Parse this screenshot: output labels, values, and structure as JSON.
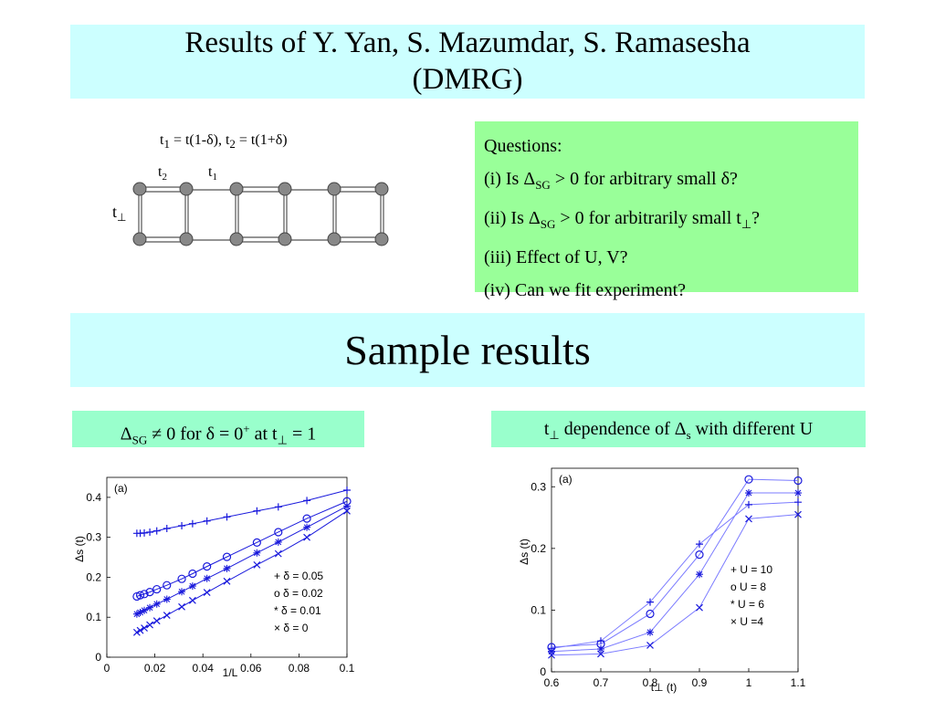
{
  "slide": {
    "title_line1": "Results of Y. Yan, S. Mazumdar, S. Ramasesha",
    "title_line2": "(DMRG)",
    "section_title": "Sample results"
  },
  "formula": {
    "t": "t",
    "one": "1",
    "two": "2",
    "eq1": " = t(1-δ), ",
    "eq2": " = t(1+δ)"
  },
  "ladder": {
    "label_t2": "t",
    "label_t2_sub": "2",
    "label_t1": "t",
    "label_t1_sub": "1",
    "label_tperp": "t",
    "label_tperp_sub": "⊥"
  },
  "questions": {
    "heading": "Questions:",
    "q1_pre": "(i) Is Δ",
    "q1_sub": "SG",
    "q1_post": " > 0  for arbitrary small δ?",
    "q2_pre": "(ii) Is Δ",
    "q2_sub": "SG",
    "q2_post": " > 0 for arbitrarily small t",
    "q2_sub2": "⊥",
    "q2_end": "?",
    "q3": "(iii) Effect of U, V?",
    "q4": "(iv) Can we fit experiment?"
  },
  "captions": {
    "left_pre": "Δ",
    "left_sub": "SG",
    "left_mid": " ≠ 0 for δ = 0",
    "left_sup": "+",
    "left_mid2": " at t",
    "left_sub2": "⊥",
    "left_end": " = 1",
    "right_pre": "t",
    "right_sub": "⊥",
    "right_mid": " dependence of Δ",
    "right_sub2": "s",
    "right_end": " with different U"
  },
  "chart_data": [
    {
      "type": "scatter",
      "panel_label": "(a)",
      "xlabel": "1/L",
      "ylabel": "Δs (t)",
      "xlim": [
        0,
        0.1
      ],
      "ylim": [
        0,
        0.45
      ],
      "xticks": [
        "0",
        "0.02",
        "0.04",
        "0.06",
        "0.08",
        "0.1"
      ],
      "yticks": [
        "0",
        "0.1",
        "0.2",
        "0.3",
        "0.4"
      ],
      "legend": [
        "+ δ = 0.05",
        "o δ = 0.02",
        "* δ = 0.01",
        "× δ = 0"
      ],
      "legend_position": "bottom-right",
      "series": [
        {
          "name": "δ = 0.05",
          "marker": "+",
          "x": [
            0.0125,
            0.0139,
            0.0156,
            0.0179,
            0.0208,
            0.025,
            0.0312,
            0.0357,
            0.0417,
            0.05,
            0.0625,
            0.0714,
            0.0833,
            0.1
          ],
          "y": [
            0.31,
            0.31,
            0.311,
            0.313,
            0.316,
            0.322,
            0.329,
            0.334,
            0.341,
            0.351,
            0.366,
            0.376,
            0.392,
            0.418
          ]
        },
        {
          "name": "δ = 0.02",
          "marker": "o",
          "x": [
            0.0125,
            0.0139,
            0.0156,
            0.0179,
            0.0208,
            0.025,
            0.0312,
            0.0357,
            0.0417,
            0.05,
            0.0625,
            0.0714,
            0.0833,
            0.1
          ],
          "y": [
            0.152,
            0.155,
            0.158,
            0.163,
            0.17,
            0.18,
            0.196,
            0.209,
            0.227,
            0.251,
            0.287,
            0.313,
            0.347,
            0.39
          ]
        },
        {
          "name": "δ = 0.01",
          "marker": "*",
          "x": [
            0.0125,
            0.0139,
            0.0156,
            0.0179,
            0.0208,
            0.025,
            0.0312,
            0.0357,
            0.0417,
            0.05,
            0.0625,
            0.0714,
            0.0833,
            0.1
          ],
          "y": [
            0.108,
            0.112,
            0.117,
            0.124,
            0.133,
            0.145,
            0.164,
            0.178,
            0.197,
            0.222,
            0.261,
            0.288,
            0.325,
            0.378
          ]
        },
        {
          "name": "δ = 0",
          "marker": "x",
          "x": [
            0.0125,
            0.0139,
            0.0156,
            0.0179,
            0.0208,
            0.025,
            0.0312,
            0.0357,
            0.0417,
            0.05,
            0.0625,
            0.0714,
            0.0833,
            0.1
          ],
          "y": [
            0.062,
            0.067,
            0.073,
            0.081,
            0.091,
            0.105,
            0.126,
            0.142,
            0.162,
            0.19,
            0.231,
            0.259,
            0.3,
            0.366
          ]
        }
      ]
    },
    {
      "type": "line",
      "panel_label": "(a)",
      "xlabel": "t⊥ (t)",
      "ylabel": "Δs (t)",
      "xlim": [
        0.6,
        1.1
      ],
      "ylim": [
        0,
        0.33
      ],
      "xticks": [
        "0.6",
        "0.7",
        "0.8",
        "0.9",
        "1",
        "1.1"
      ],
      "yticks": [
        "0",
        "0.1",
        "0.2",
        "0.3"
      ],
      "legend": [
        "+ U = 10",
        "o U = 8",
        "* U = 6",
        "× U =4"
      ],
      "legend_position": "right",
      "series": [
        {
          "name": "U = 10",
          "marker": "+",
          "x": [
            0.6,
            0.7,
            0.8,
            0.9,
            1,
            1.1
          ],
          "y": [
            0.038,
            0.05,
            0.113,
            0.207,
            0.271,
            0.275
          ]
        },
        {
          "name": "U = 8",
          "marker": "o",
          "x": [
            0.6,
            0.7,
            0.8,
            0.9,
            1,
            1.1
          ],
          "y": [
            0.04,
            0.045,
            0.094,
            0.19,
            0.312,
            0.31
          ]
        },
        {
          "name": "U = 6",
          "marker": "*",
          "x": [
            0.6,
            0.7,
            0.8,
            0.9,
            1,
            1.1
          ],
          "y": [
            0.033,
            0.037,
            0.064,
            0.158,
            0.29,
            0.29
          ]
        },
        {
          "name": "U = 4",
          "marker": "x",
          "x": [
            0.6,
            0.7,
            0.8,
            0.9,
            1,
            1.1
          ],
          "y": [
            0.027,
            0.029,
            0.043,
            0.104,
            0.248,
            0.255
          ]
        }
      ]
    }
  ]
}
